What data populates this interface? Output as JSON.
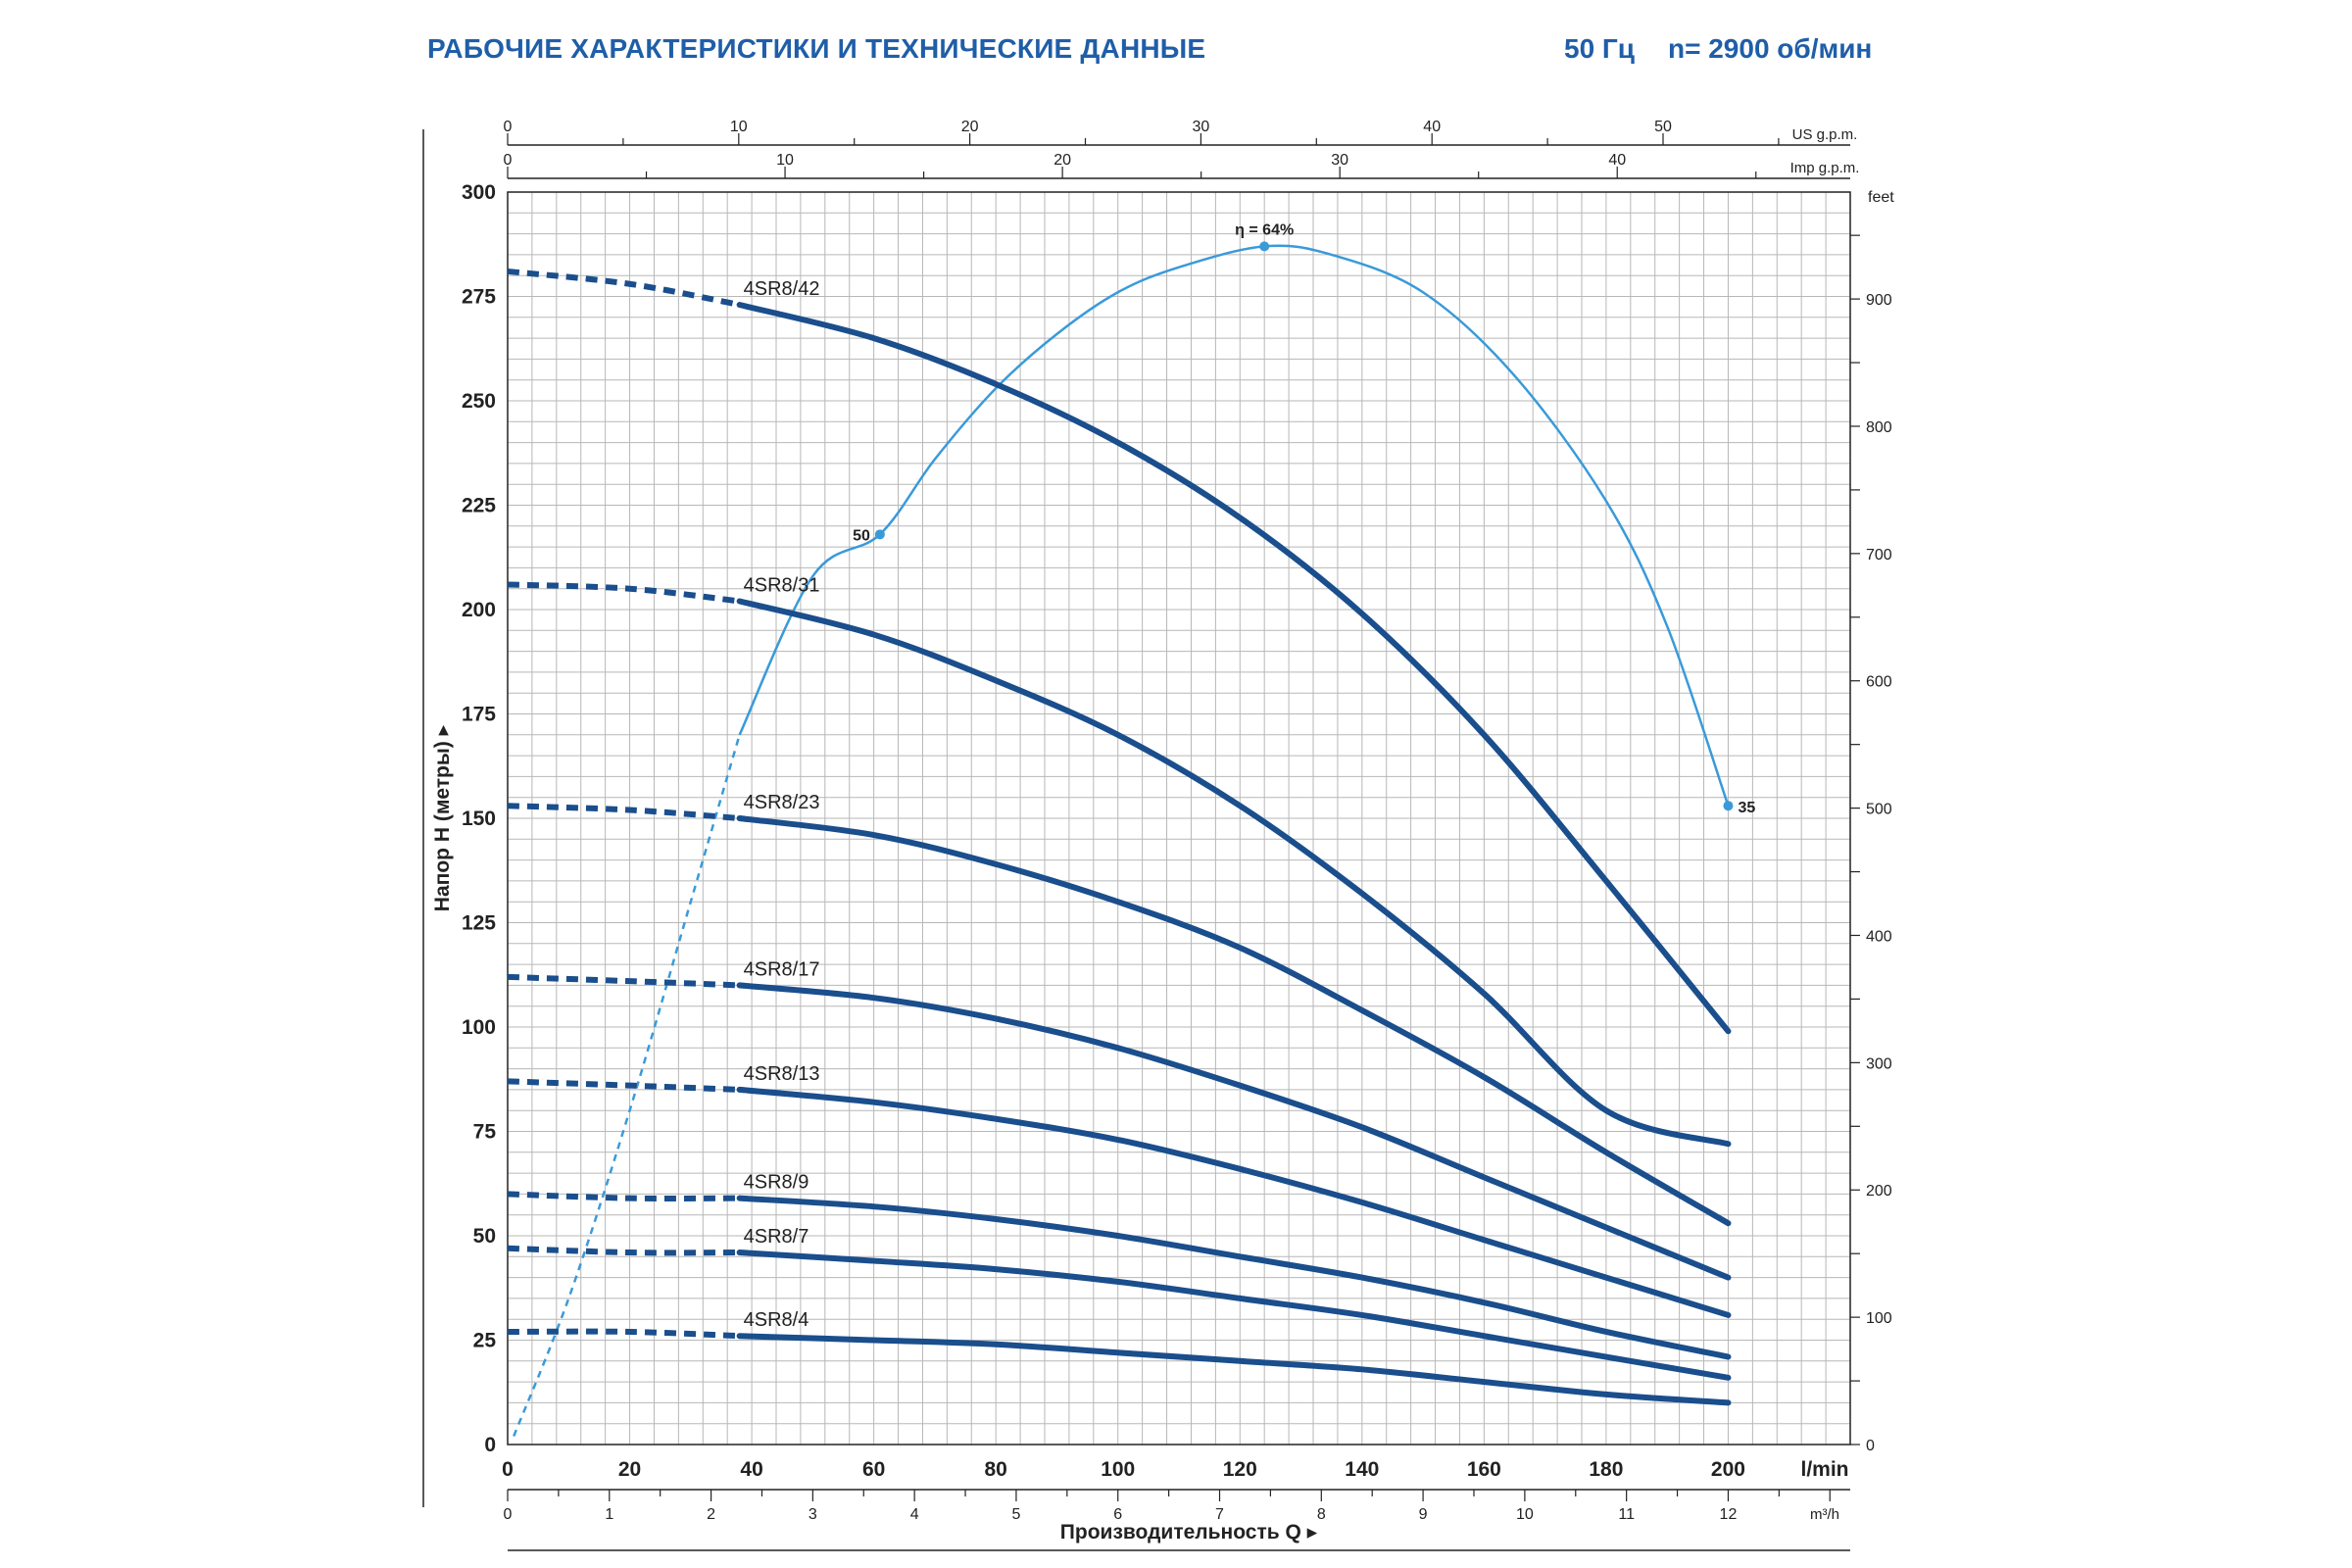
{
  "header": {
    "title": "РАБОЧИЕ ХАРАКТЕРИСТИКИ И ТЕХНИЧЕСКИЕ ДАННЫЕ",
    "frequency": "50 Гц",
    "speed": "n= 2900 об/мин"
  },
  "colors": {
    "curve": "#1a4e8c",
    "efficiency": "#3a9ad9",
    "grid": "#b7b7b7",
    "axis": "#222222",
    "title": "#1f5ea8"
  },
  "chart_data": {
    "type": "line",
    "grid": true,
    "axes": {
      "x_primary": {
        "unit_label": "l/min",
        "range": [
          0,
          220
        ],
        "ticks": [
          0,
          20,
          40,
          60,
          80,
          100,
          120,
          140,
          160,
          180,
          200
        ]
      },
      "x_m3h": {
        "unit_label": "m³/h",
        "range": [
          0,
          13.2
        ],
        "ticks": [
          0,
          1,
          2,
          3,
          4,
          5,
          6,
          7,
          8,
          9,
          10,
          11,
          12
        ]
      },
      "x_usgpm": {
        "unit_label": "US g.p.m.",
        "range": [
          0,
          58.1
        ],
        "ticks": [
          0,
          10,
          20,
          30,
          40,
          50
        ]
      },
      "x_impgpm": {
        "unit_label": "Imp g.p.m.",
        "range": [
          0,
          48.4
        ],
        "ticks": [
          0,
          10,
          20,
          30,
          40
        ],
        "tick_labels": [
          "0",
          "10",
          "20",
          "30",
          "40"
        ]
      },
      "y_primary": {
        "label": "Напор H (метры)",
        "range": [
          0,
          300
        ],
        "ticks": [
          0,
          25,
          50,
          75,
          100,
          125,
          150,
          175,
          200,
          225,
          250,
          275,
          300
        ]
      },
      "y_feet": {
        "unit_label": "feet",
        "range": [
          0,
          984
        ],
        "ticks": [
          0,
          100,
          200,
          300,
          400,
          500,
          600,
          700,
          800,
          900
        ]
      },
      "x_label": "Производительность Q"
    },
    "imp_tick_labels": [
      "0",
      "10",
      "20",
      "30",
      "40"
    ],
    "imp_tick_values": [
      0,
      10,
      20,
      30,
      40
    ],
    "imp_label_30_value": 30,
    "series": [
      {
        "name": "4SR8/42",
        "x": [
          0,
          20,
          38,
          60,
          80,
          100,
          120,
          140,
          160,
          180,
          200
        ],
        "y": [
          281,
          278,
          273,
          265,
          254,
          240,
          222,
          199,
          170,
          135,
          99
        ],
        "dashed_to": 38
      },
      {
        "name": "4SR8/31",
        "x": [
          0,
          20,
          38,
          60,
          80,
          100,
          120,
          140,
          160,
          180,
          200
        ],
        "y": [
          206,
          205,
          202,
          194,
          183,
          170,
          153,
          132,
          108,
          80,
          72
        ],
        "dashed_to": 38
      },
      {
        "name": "4SR8/23",
        "x": [
          0,
          20,
          38,
          60,
          80,
          100,
          120,
          140,
          160,
          180,
          200
        ],
        "y": [
          153,
          152,
          150,
          146,
          139,
          130,
          119,
          104,
          88,
          70,
          53
        ],
        "dashed_to": 38
      },
      {
        "name": "4SR8/17",
        "x": [
          0,
          20,
          38,
          60,
          80,
          100,
          120,
          140,
          160,
          180,
          200
        ],
        "y": [
          112,
          111,
          110,
          107,
          102,
          95,
          86,
          76,
          64,
          52,
          40
        ],
        "dashed_to": 38
      },
      {
        "name": "4SR8/13",
        "x": [
          0,
          20,
          38,
          60,
          80,
          100,
          120,
          140,
          160,
          180,
          200
        ],
        "y": [
          87,
          86,
          85,
          82,
          78,
          73,
          66,
          58,
          49,
          40,
          31
        ],
        "dashed_to": 38
      },
      {
        "name": "4SR8/9",
        "x": [
          0,
          20,
          38,
          60,
          80,
          100,
          120,
          140,
          160,
          180,
          200
        ],
        "y": [
          60,
          59,
          59,
          57,
          54,
          50,
          45,
          40,
          34,
          27,
          21
        ],
        "dashed_to": 38
      },
      {
        "name": "4SR8/7",
        "x": [
          0,
          20,
          38,
          60,
          80,
          100,
          120,
          140,
          160,
          180,
          200
        ],
        "y": [
          47,
          46,
          46,
          44,
          42,
          39,
          35,
          31,
          26,
          21,
          16
        ],
        "dashed_to": 38
      },
      {
        "name": "4SR8/4",
        "x": [
          0,
          20,
          38,
          60,
          80,
          100,
          120,
          140,
          160,
          180,
          200
        ],
        "y": [
          27,
          27,
          26,
          25,
          24,
          22,
          20,
          18,
          15,
          12,
          10
        ],
        "dashed_to": 38
      }
    ],
    "efficiency_curve": {
      "x": [
        1,
        10,
        20,
        30,
        38,
        50,
        61,
        70,
        80,
        90,
        100,
        110,
        124,
        135,
        150,
        165,
        180,
        190,
        200
      ],
      "y": [
        2,
        35,
        80,
        130,
        170,
        208,
        218,
        236,
        253,
        266,
        276,
        282,
        287,
        285,
        276,
        256,
        226,
        196,
        153
      ],
      "dashed_to": 38,
      "points": [
        {
          "x": 61,
          "y": 218,
          "label": "50"
        },
        {
          "x": 124,
          "y": 287,
          "label": "η = 64%"
        },
        {
          "x": 200,
          "y": 153,
          "label": "35"
        }
      ]
    }
  }
}
